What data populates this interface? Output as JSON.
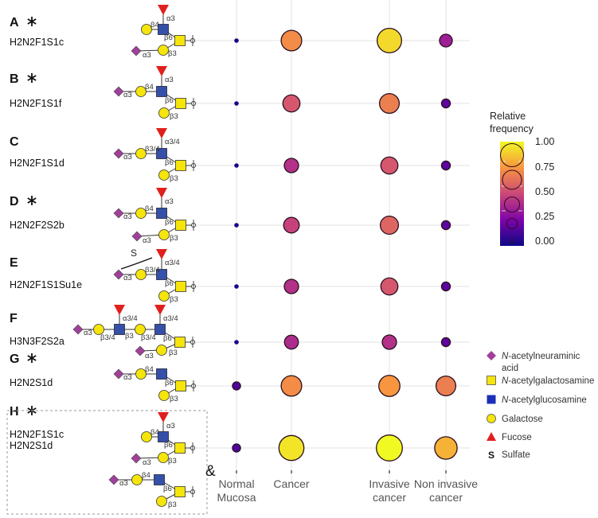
{
  "chart_data": {
    "type": "scatter",
    "subtype": "bubble",
    "title": "",
    "xlabel": "",
    "ylabel": "",
    "categories": [
      [
        "Normal",
        "Mucosa"
      ],
      [
        "Cancer"
      ],
      [
        "Invasive",
        "cancer"
      ],
      [
        "Non invasive",
        "cancer"
      ]
    ],
    "grid": true,
    "size_and_color_encode": "relative frequency",
    "colormap": "plasma",
    "colormap_stops": [
      "#0d0887",
      "#7e03a8",
      "#cc4778",
      "#f89540",
      "#f0f921"
    ],
    "rows": [
      {
        "letter": "A",
        "asterisk": true,
        "names": [
          "H2N2F1S1c"
        ],
        "values": [
          0.02,
          0.72,
          0.92,
          0.35
        ],
        "linkages": [
          "α3",
          "β4",
          "β6",
          "β3",
          "α3"
        ]
      },
      {
        "letter": "B",
        "asterisk": true,
        "names": [
          "H2N2F1S1f"
        ],
        "values": [
          0.02,
          0.55,
          0.68,
          0.18
        ],
        "linkages": [
          "α3",
          "β4",
          "α3",
          "β6",
          "β3"
        ]
      },
      {
        "letter": "C",
        "asterisk": false,
        "names": [
          "H2N2F1S1d"
        ],
        "values": [
          0.02,
          0.42,
          0.55,
          0.18
        ],
        "linkages": [
          "α3/4",
          "β3/4",
          "α3",
          "β6",
          "β3"
        ]
      },
      {
        "letter": "D",
        "asterisk": true,
        "names": [
          "H2N2F2S2b"
        ],
        "values": [
          0.02,
          0.48,
          0.6,
          0.18
        ],
        "linkages": [
          "α3",
          "β4",
          "α3",
          "β6",
          "β3",
          "α3"
        ]
      },
      {
        "letter": "E",
        "asterisk": false,
        "names": [
          "H2N2F1S1Su1e"
        ],
        "values": [
          0.02,
          0.42,
          0.55,
          0.18
        ],
        "linkages": [
          "α3/4",
          "β3/4",
          "α3",
          "β6",
          "β3"
        ],
        "sulfate": "S"
      },
      {
        "letter": "F",
        "asterisk": false,
        "names": [
          "H3N3F2S2a"
        ],
        "values": [
          0.02,
          0.4,
          0.42,
          0.18
        ],
        "linkages": [
          "α3/4",
          "β3/4",
          "β3",
          "β3/4",
          "α3",
          "α3/4",
          "β6",
          "β3",
          "α3"
        ]
      },
      {
        "letter": "G",
        "asterisk": true,
        "names": [
          "H2N2S1d"
        ],
        "values": [
          0.15,
          0.72,
          0.75,
          0.68
        ],
        "linkages": [
          "β4",
          "α3",
          "β6",
          "β3"
        ]
      },
      {
        "letter": "H",
        "asterisk": true,
        "names": [
          "H2N2F1S1c",
          "H2N2S1d"
        ],
        "values": [
          0.15,
          0.95,
          1.0,
          0.82
        ],
        "linkages": [
          "α3",
          "β4",
          "β6",
          "β3",
          "α3"
        ],
        "linkages2": [
          "β4",
          "α3",
          "β6",
          "β3"
        ],
        "joiner": "&"
      }
    ],
    "legend": {
      "title": [
        "Relative",
        "frequency"
      ],
      "ticks": [
        "1.00",
        "0.75",
        "0.50",
        "0.25",
        "0.00"
      ],
      "tick_values": [
        1.0,
        0.75,
        0.5,
        0.25,
        0.0
      ],
      "placement": "right"
    }
  },
  "symbol_legend": [
    {
      "icon": "diamond-icon",
      "color": "#a0409a",
      "italic": "N",
      "text": "-acetylneuraminic",
      "text2": "acid"
    },
    {
      "icon": "square-icon",
      "color": "#f5e50a",
      "italic": "N",
      "text": "-acetylgalactosamine"
    },
    {
      "icon": "square-icon",
      "color": "#1c2fb8",
      "italic": "N",
      "text": "-acetylglucosamine"
    },
    {
      "icon": "circle-icon",
      "color": "#f5e50a",
      "italic": "",
      "text": "Galactose"
    },
    {
      "icon": "triangle-icon",
      "color": "#e0201e",
      "italic": "",
      "text": "Fucose"
    },
    {
      "icon": "sulfate-icon",
      "symbol": "S",
      "italic": "",
      "text": "Sulfate"
    }
  ],
  "colors": {
    "neuac": "#a0409a",
    "galnac": "#f5e50a",
    "glcnac": "#3550a8",
    "gal": "#f5e50a",
    "fuc": "#e0201e",
    "grid": "#ebebeb"
  }
}
